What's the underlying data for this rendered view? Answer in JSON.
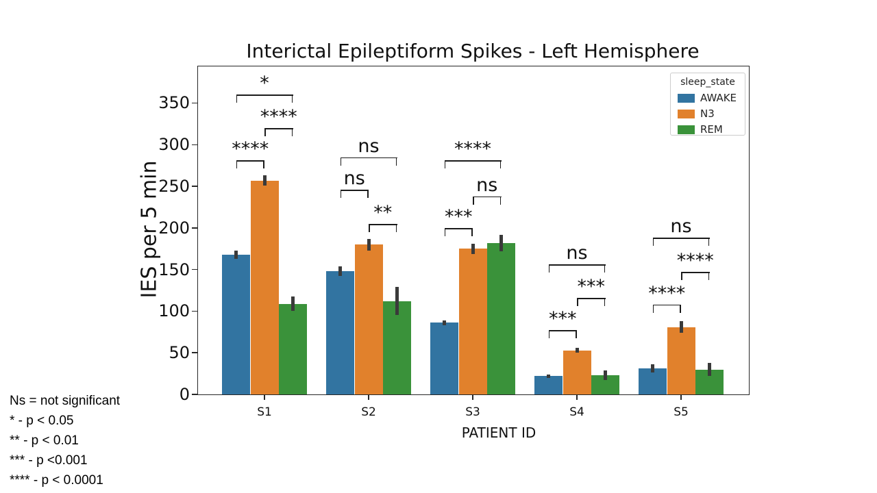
{
  "title": "Interictal Epileptiform Spikes - Left Hemisphere",
  "chart_data": {
    "type": "bar",
    "title": "Interictal Epileptiform Spikes - Left Hemisphere",
    "xlabel": "PATIENT ID",
    "ylabel": "IES per 5 min",
    "ylim": [
      0,
      394
    ],
    "yticks": [
      0,
      50,
      100,
      150,
      200,
      250,
      300,
      350
    ],
    "categories": [
      "S1",
      "S2",
      "S3",
      "S4",
      "S5"
    ],
    "series": [
      {
        "name": "AWAKE",
        "color": "#3274a1",
        "values": [
          168,
          148,
          86,
          22,
          31
        ],
        "errors": [
          5,
          6,
          3,
          2,
          5
        ]
      },
      {
        "name": "N3",
        "color": "#e1812c",
        "values": [
          257,
          180,
          175,
          53,
          81
        ],
        "errors": [
          6,
          7,
          6,
          3,
          7
        ]
      },
      {
        "name": "REM",
        "color": "#3a923a",
        "values": [
          109,
          112,
          182,
          23,
          30
        ],
        "errors": [
          9,
          17,
          10,
          6,
          8
        ]
      }
    ],
    "legend": {
      "title": "sleep_state",
      "position": "upper right"
    },
    "grid": false,
    "annotations": [
      {
        "group": "S1",
        "comparisons": [
          {
            "pair": [
              0,
              1
            ],
            "label": "****",
            "y": 281
          },
          {
            "pair": [
              1,
              2
            ],
            "label": "****",
            "y": 320
          },
          {
            "pair": [
              0,
              2
            ],
            "label": "*",
            "y": 360
          }
        ]
      },
      {
        "group": "S2",
        "comparisons": [
          {
            "pair": [
              0,
              1
            ],
            "label": "ns",
            "y": 246
          },
          {
            "pair": [
              1,
              2
            ],
            "label": "**",
            "y": 205
          },
          {
            "pair": [
              0,
              2
            ],
            "label": "ns",
            "y": 285
          }
        ]
      },
      {
        "group": "S3",
        "comparisons": [
          {
            "pair": [
              0,
              1
            ],
            "label": "***",
            "y": 200
          },
          {
            "pair": [
              1,
              2
            ],
            "label": "ns",
            "y": 238
          },
          {
            "pair": [
              0,
              2
            ],
            "label": "****",
            "y": 281
          }
        ]
      },
      {
        "group": "S4",
        "comparisons": [
          {
            "pair": [
              0,
              1
            ],
            "label": "***",
            "y": 77
          },
          {
            "pair": [
              1,
              2
            ],
            "label": "***",
            "y": 116
          },
          {
            "pair": [
              0,
              2
            ],
            "label": "ns",
            "y": 156
          }
        ]
      },
      {
        "group": "S5",
        "comparisons": [
          {
            "pair": [
              0,
              1
            ],
            "label": "****",
            "y": 108
          },
          {
            "pair": [
              1,
              2
            ],
            "label": "****",
            "y": 147
          },
          {
            "pair": [
              0,
              2
            ],
            "label": "ns",
            "y": 188
          }
        ]
      }
    ]
  },
  "footnotes": [
    "Ns = not significant",
    "* - p < 0.05",
    "** - p < 0.01",
    "*** - p <0.001",
    "**** - p < 0.0001"
  ]
}
